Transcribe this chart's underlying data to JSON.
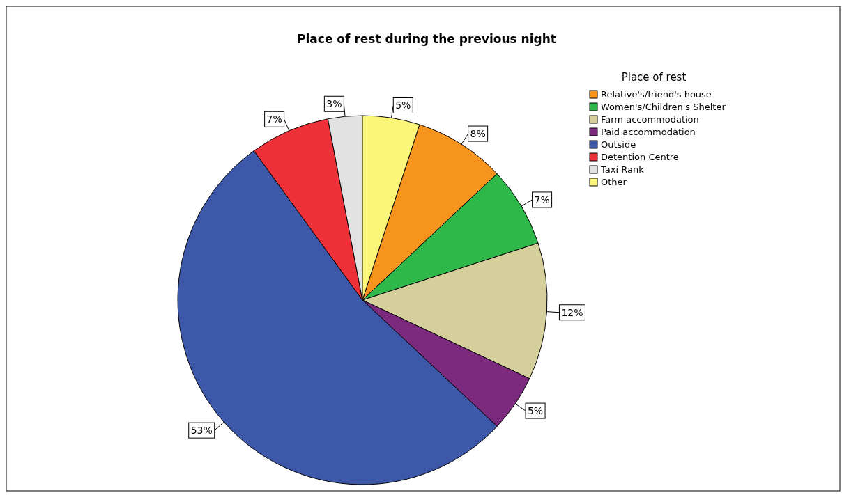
{
  "chart_data": {
    "type": "pie",
    "title": "Place of rest during the previous night",
    "legend_title": "Place of rest",
    "legend": "top right",
    "value_labels": [
      "8%",
      "7%",
      "12%",
      "5%",
      "53%",
      "7%",
      "3%",
      "5%"
    ],
    "categories": [
      "Relative's/friend's house",
      "Women's/Children's Shelter",
      "Farm accommodation",
      "Paid accommodation",
      "Outside",
      "Detention Centre",
      "Taxi Rank",
      "Other"
    ],
    "values": [
      8,
      7,
      12,
      5,
      53,
      7,
      3,
      5
    ],
    "colors": [
      "#f7941d",
      "#2fb84a",
      "#d4cf9b",
      "#7b2a7d",
      "#3d58a8",
      "#ee3039",
      "#e2e2e2",
      "#fbf67a"
    ]
  }
}
